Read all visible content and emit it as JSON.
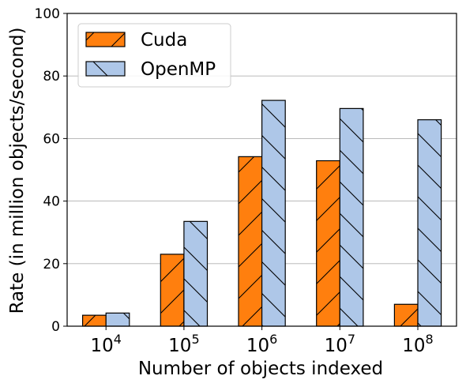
{
  "chart_data": {
    "type": "bar",
    "xlabel": "Number of objects indexed",
    "ylabel": "Rate (in million objects/second)",
    "ylim": [
      0,
      100
    ],
    "yticks": [
      0,
      20,
      40,
      60,
      80,
      100
    ],
    "grid": "horizontal",
    "legend_position": "top-left",
    "categories": [
      {
        "base": "10",
        "exp": "4"
      },
      {
        "base": "10",
        "exp": "5"
      },
      {
        "base": "10",
        "exp": "6"
      },
      {
        "base": "10",
        "exp": "7"
      },
      {
        "base": "10",
        "exp": "8"
      }
    ],
    "series": [
      {
        "name": "Cuda",
        "color": "#ff7f0e",
        "hatch": "forward-slash",
        "values": [
          3.5,
          23,
          54.2,
          52.9,
          7
        ]
      },
      {
        "name": "OpenMP",
        "color": "#aec7e8",
        "hatch": "back-slash",
        "values": [
          4.2,
          33.5,
          72.2,
          69.6,
          66
        ]
      }
    ]
  }
}
